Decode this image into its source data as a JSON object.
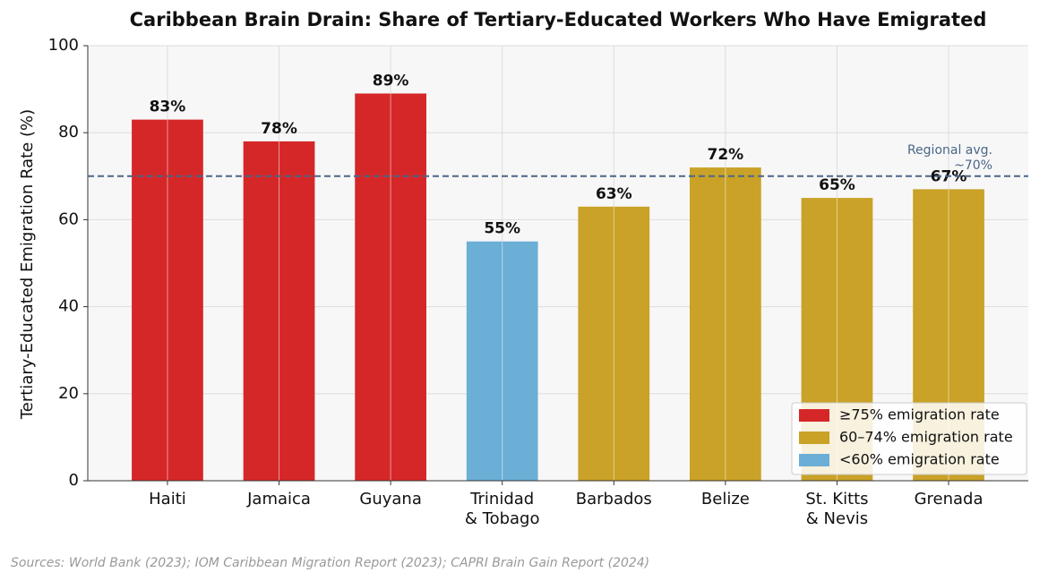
{
  "chart_data": {
    "type": "bar",
    "title": "Caribbean Brain Drain: Share of Tertiary-Educated Workers Who Have Emigrated",
    "y_label": "Tertiary-Educated Emigration Rate (%)",
    "categories": [
      "Haiti",
      "Jamaica",
      "Guyana",
      "Trinidad\n& Tobago",
      "Barbados",
      "Belize",
      "St. Kitts\n& Nevis",
      "Grenada"
    ],
    "values": [
      83,
      78,
      89,
      55,
      63,
      72,
      65,
      67
    ],
    "value_labels": [
      "83%",
      "78%",
      "89%",
      "55%",
      "63%",
      "72%",
      "65%",
      "67%"
    ],
    "colors": [
      "#d62728",
      "#d62728",
      "#d62728",
      "#6baed6",
      "#c9a227",
      "#c9a227",
      "#c9a227",
      "#c9a227"
    ],
    "ylim": [
      0,
      100
    ],
    "yticks": [
      0,
      20,
      40,
      60,
      80,
      100
    ],
    "grid": true,
    "reference_line": {
      "value": 70,
      "label": "Regional avg.\n~70%",
      "color": "#4a6688"
    },
    "legend": {
      "position": "lower right",
      "entries": [
        {
          "label": "≥75% emigration rate",
          "color": "#d62728"
        },
        {
          "label": "60–74% emigration rate",
          "color": "#c9a227"
        },
        {
          "label": "<60% emigration rate",
          "color": "#6baed6"
        }
      ]
    },
    "source": "Sources: World Bank (2023); IOM Caribbean Migration Report (2023); CAPRI Brain Gain Report (2024)"
  }
}
